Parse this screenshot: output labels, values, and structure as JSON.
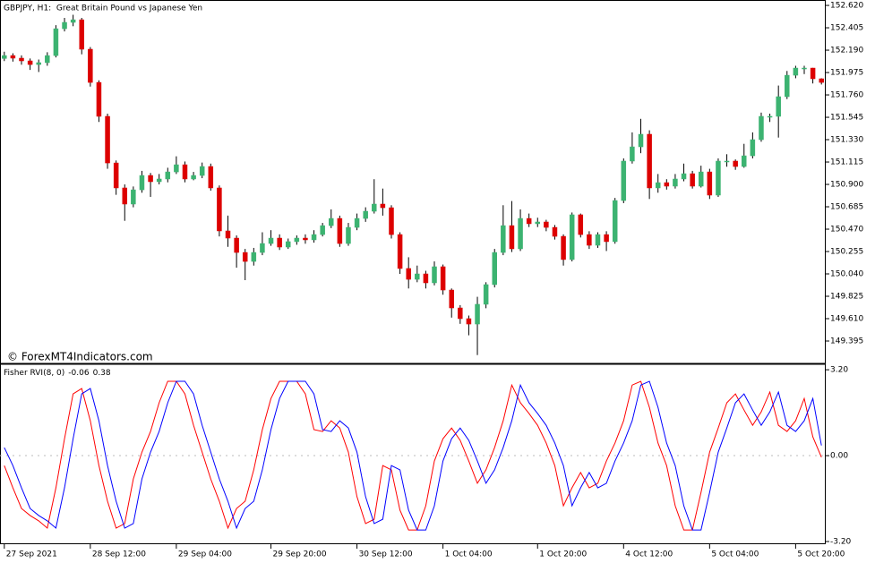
{
  "chart_data": [
    {
      "type": "candlestick",
      "title": "GBPJPY, H1:  Great Britain Pound vs Japanese Yen",
      "annotations": [
        "© ForexMT4Indicators.com"
      ],
      "up_color": "#3cb371",
      "down_color": "#dd0000",
      "wick_color": "#000000",
      "xlim": [
        -0.5,
        95.5
      ],
      "xticks": [
        {
          "value": 0,
          "label": "27 Sep 2021"
        },
        {
          "value": 10,
          "label": "28 Sep 12:00"
        },
        {
          "value": 20,
          "label": "29 Sep 04:00"
        },
        {
          "value": 31,
          "label": "29 Sep 20:00"
        },
        {
          "value": 41,
          "label": "30 Sep 12:00"
        },
        {
          "value": 51,
          "label": "1 Oct 04:00"
        },
        {
          "value": 62,
          "label": "1 Oct 20:00"
        },
        {
          "value": 72,
          "label": "4 Oct 12:00"
        },
        {
          "value": 82,
          "label": "5 Oct 04:00"
        },
        {
          "value": 92,
          "label": "5 Oct 20:00"
        }
      ],
      "ylim": [
        149.18,
        152.672
      ],
      "yticks": [
        {
          "value": 152.62,
          "label": "152.620"
        },
        152.405,
        {
          "value": 152.19,
          "label": "152.190"
        },
        151.975,
        {
          "value": 151.76,
          "label": "151.760"
        },
        151.545,
        {
          "value": 151.33,
          "label": "151.330"
        },
        151.115,
        {
          "value": 150.9,
          "label": "150.900"
        },
        150.685,
        {
          "value": 150.47,
          "label": "150.470"
        },
        150.255,
        {
          "value": 150.04,
          "label": "150.040"
        },
        149.825,
        {
          "value": 149.61,
          "label": "149.610"
        },
        149.395
      ],
      "open": [
        152.11,
        152.138,
        152.113,
        152.087,
        152.052,
        152.07,
        152.138,
        152.396,
        152.457,
        152.482,
        152.199,
        151.88,
        151.554,
        151.106,
        150.866,
        150.711,
        150.848,
        150.986,
        150.926,
        150.952,
        151.02,
        151.089,
        150.952,
        150.986,
        151.072,
        150.866,
        150.453,
        150.384,
        150.246,
        150.16,
        150.246,
        150.332,
        150.384,
        150.298,
        150.35,
        150.384,
        150.367,
        150.418,
        150.504,
        150.573,
        150.332,
        150.487,
        150.573,
        150.642,
        150.711,
        150.676,
        150.418,
        150.092,
        149.988,
        150.04,
        149.954,
        150.109,
        149.885,
        149.713,
        149.61,
        149.558,
        149.748,
        149.937,
        150.246,
        150.504,
        150.281,
        150.573,
        150.522,
        150.539,
        150.487,
        150.401,
        150.178,
        150.608,
        150.418,
        150.315,
        150.418,
        150.35,
        150.745,
        151.124,
        151.261,
        151.382,
        150.866,
        150.917,
        150.883,
        150.952,
        151.003,
        150.883,
        151.02,
        150.797,
        151.124,
        151.124,
        151.072,
        151.175,
        151.33,
        151.554,
        151.554,
        151.743,
        151.949,
        152.018,
        152.018,
        151.915
      ],
      "high": [
        152.175,
        152.16,
        152.14,
        152.11,
        152.1,
        152.17,
        152.43,
        152.5,
        152.53,
        152.5,
        152.22,
        151.9,
        151.58,
        151.13,
        150.9,
        150.88,
        151.03,
        151.01,
        151.0,
        151.06,
        151.17,
        151.12,
        151.02,
        151.11,
        151.1,
        150.89,
        150.6,
        150.41,
        150.28,
        150.29,
        150.44,
        150.46,
        150.42,
        150.38,
        150.41,
        150.42,
        150.46,
        150.53,
        150.66,
        150.6,
        150.53,
        150.62,
        150.68,
        150.95,
        150.86,
        150.7,
        150.44,
        150.2,
        150.12,
        150.07,
        150.16,
        150.13,
        149.9,
        149.74,
        149.64,
        149.82,
        149.96,
        150.28,
        150.7,
        150.74,
        150.66,
        150.62,
        150.58,
        150.56,
        150.51,
        150.42,
        150.63,
        150.62,
        150.45,
        150.44,
        150.45,
        150.77,
        151.15,
        151.4,
        151.53,
        151.42,
        151.0,
        150.95,
        151.0,
        151.1,
        151.03,
        151.08,
        151.05,
        151.15,
        151.19,
        151.14,
        151.29,
        151.4,
        151.59,
        151.58,
        151.85,
        151.99,
        152.04,
        152.04,
        152.02,
        151.92
      ],
      "low": [
        152.085,
        152.08,
        152.05,
        152.0,
        151.98,
        152.04,
        152.12,
        152.37,
        152.42,
        152.15,
        151.84,
        151.5,
        151.05,
        150.8,
        150.55,
        150.68,
        150.82,
        150.78,
        150.9,
        150.92,
        151.0,
        150.92,
        150.94,
        150.96,
        150.84,
        150.4,
        150.3,
        150.1,
        149.98,
        150.12,
        150.22,
        150.31,
        150.27,
        150.28,
        150.32,
        150.33,
        150.34,
        150.4,
        150.48,
        150.3,
        150.31,
        150.46,
        150.54,
        150.62,
        150.6,
        150.38,
        150.04,
        149.9,
        149.96,
        149.9,
        149.93,
        149.84,
        149.62,
        149.56,
        149.45,
        149.26,
        149.71,
        149.91,
        150.22,
        150.25,
        150.26,
        150.49,
        150.49,
        150.45,
        150.37,
        150.12,
        150.16,
        150.39,
        150.28,
        150.29,
        150.26,
        150.33,
        150.72,
        151.1,
        151.2,
        150.76,
        150.82,
        150.85,
        150.86,
        150.93,
        150.86,
        150.87,
        150.76,
        150.78,
        151.07,
        151.04,
        151.06,
        151.15,
        151.31,
        151.5,
        151.35,
        151.72,
        151.92,
        151.96,
        151.87,
        151.86
      ],
      "close": [
        152.138,
        152.113,
        152.087,
        152.052,
        152.07,
        152.138,
        152.396,
        152.457,
        152.482,
        152.199,
        151.88,
        151.554,
        151.106,
        150.866,
        150.711,
        150.848,
        150.986,
        150.926,
        150.952,
        151.02,
        151.089,
        150.952,
        150.986,
        151.072,
        150.866,
        150.453,
        150.384,
        150.246,
        150.16,
        150.246,
        150.332,
        150.384,
        150.298,
        150.35,
        150.384,
        150.367,
        150.418,
        150.504,
        150.573,
        150.332,
        150.487,
        150.573,
        150.642,
        150.711,
        150.676,
        150.418,
        150.092,
        149.988,
        150.04,
        149.954,
        150.109,
        149.885,
        149.713,
        149.61,
        149.558,
        149.748,
        149.937,
        150.246,
        150.504,
        150.281,
        150.573,
        150.522,
        150.539,
        150.487,
        150.401,
        150.178,
        150.608,
        150.418,
        150.315,
        150.418,
        150.35,
        150.745,
        151.124,
        151.261,
        151.382,
        150.866,
        150.917,
        150.883,
        150.952,
        151.003,
        150.883,
        151.02,
        150.797,
        151.124,
        151.124,
        151.072,
        151.175,
        151.33,
        151.554,
        151.554,
        151.743,
        151.949,
        152.018,
        152.018,
        151.915,
        151.88
      ]
    },
    {
      "type": "line",
      "title": "Fisher RVI(8, 0)",
      "xlim": [
        -0.5,
        95.5
      ],
      "ylim": [
        -3.3,
        3.37
      ],
      "yticks": [
        {
          "value": 3.2,
          "label": "3.20"
        },
        {
          "value": 0,
          "label": "0.00"
        },
        {
          "value": -3.2,
          "label": "-3.20"
        }
      ],
      "levels": [
        0
      ],
      "series": [
        {
          "color": "#ff0000",
          "values": [
            -0.37,
            -1.2,
            -1.97,
            -2.23,
            -2.43,
            -2.7,
            -1.2,
            0.63,
            2.3,
            2.5,
            1.3,
            -0.37,
            -1.7,
            -2.7,
            -2.53,
            -0.87,
            0.13,
            0.9,
            1.97,
            2.77,
            2.77,
            2.3,
            1.13,
            0.13,
            -0.87,
            -1.7,
            -2.7,
            -1.97,
            -1.7,
            -0.53,
            0.97,
            2.13,
            2.77,
            2.77,
            2.77,
            2.3,
            0.97,
            0.9,
            1.3,
            1.03,
            0.13,
            -1.53,
            -2.53,
            -2.37,
            -0.37,
            -0.53,
            -2.03,
            -2.77,
            -2.77,
            -1.87,
            -0.2,
            0.63,
            1.03,
            0.57,
            -0.2,
            -1.03,
            -0.53,
            0.3,
            1.3,
            2.63,
            1.97,
            1.57,
            1.13,
            0.47,
            -0.37,
            -1.87,
            -1.2,
            -0.63,
            -1.2,
            -1.03,
            -0.2,
            0.47,
            1.3,
            2.63,
            2.77,
            1.8,
            0.47,
            -0.37,
            -1.87,
            -2.77,
            -2.77,
            -1.37,
            0.13,
            1.03,
            1.97,
            2.3,
            1.7,
            1.13,
            1.63,
            2.37,
            1.13,
            0.9,
            1.3,
            2.13,
            0.7,
            -0.06
          ]
        },
        {
          "color": "#0000ff",
          "values": [
            0.3,
            -0.37,
            -1.2,
            -1.97,
            -2.23,
            -2.43,
            -2.7,
            -1.2,
            0.63,
            2.3,
            2.5,
            1.3,
            -0.37,
            -1.7,
            -2.7,
            -2.53,
            -0.87,
            0.13,
            0.9,
            1.97,
            2.77,
            2.77,
            2.3,
            1.13,
            0.13,
            -0.87,
            -1.7,
            -2.7,
            -1.97,
            -1.7,
            -0.53,
            0.97,
            2.13,
            2.77,
            2.77,
            2.77,
            2.3,
            0.97,
            0.9,
            1.3,
            1.03,
            0.13,
            -1.53,
            -2.53,
            -2.37,
            -0.37,
            -0.53,
            -2.03,
            -2.77,
            -2.77,
            -1.87,
            -0.2,
            0.63,
            1.03,
            0.57,
            -0.2,
            -1.03,
            -0.53,
            0.3,
            1.3,
            2.63,
            1.97,
            1.57,
            1.13,
            0.47,
            -0.37,
            -1.87,
            -1.2,
            -0.63,
            -1.2,
            -1.03,
            -0.2,
            0.47,
            1.3,
            2.63,
            2.77,
            1.8,
            0.47,
            -0.37,
            -1.87,
            -2.77,
            -2.77,
            -1.37,
            0.13,
            1.03,
            1.97,
            2.3,
            1.7,
            1.13,
            1.63,
            2.37,
            1.13,
            0.9,
            1.3,
            2.13,
            0.38
          ]
        }
      ]
    }
  ]
}
